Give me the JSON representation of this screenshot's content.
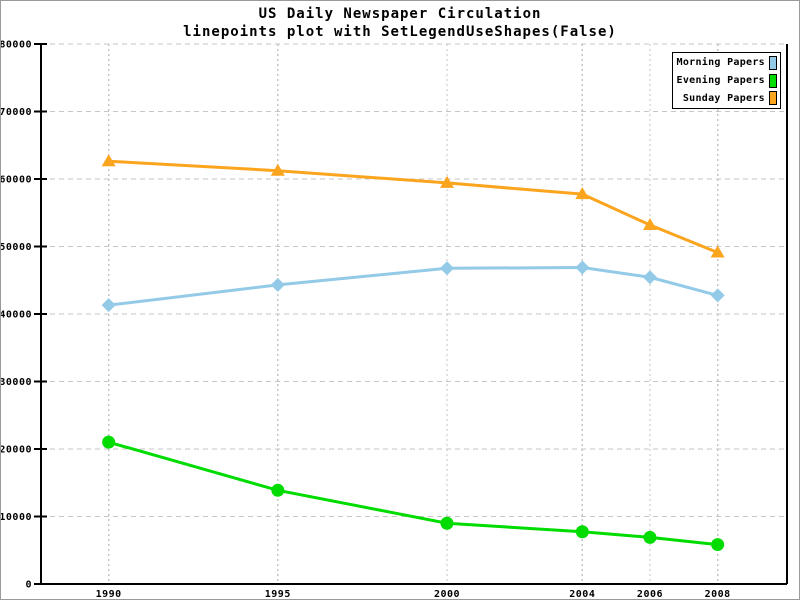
{
  "page": {
    "background": "#ffffff",
    "border_color": "#9a9a9a"
  },
  "chart_data": {
    "type": "line",
    "title": "US Daily Newspaper Circulation",
    "subtitle": "linepoints plot with SetLegendUseShapes(False)",
    "x": [
      1990,
      1995,
      2000,
      2004,
      2006,
      2008
    ],
    "xtick_labels": [
      "1990",
      "1995",
      "2000",
      "2004",
      "2006",
      "2008"
    ],
    "ytick_values": [
      0,
      10000,
      20000,
      30000,
      40000,
      50000,
      60000,
      70000,
      80000
    ],
    "xlim": [
      1988,
      2010.05
    ],
    "ylim": [
      0,
      80000
    ],
    "grid": true,
    "legend_position": "top-right",
    "axis_color": "#000000",
    "gridline_color": "#c6c6c6",
    "series": [
      {
        "name": "Morning Papers",
        "color": "#92cae7",
        "marker": "diamond",
        "values": [
          41311,
          44310,
          46772,
          46887,
          45441,
          42757
        ]
      },
      {
        "name": "Evening Papers",
        "color": "#00dc00",
        "marker": "circle",
        "values": [
          21017,
          13883,
          9000,
          7738,
          6900,
          5840
        ]
      },
      {
        "name": "Sunday Papers",
        "color": "#fba41e",
        "marker": "triangle",
        "values": [
          62634,
          61229,
          59421,
          57754,
          53179,
          49115
        ]
      }
    ]
  }
}
